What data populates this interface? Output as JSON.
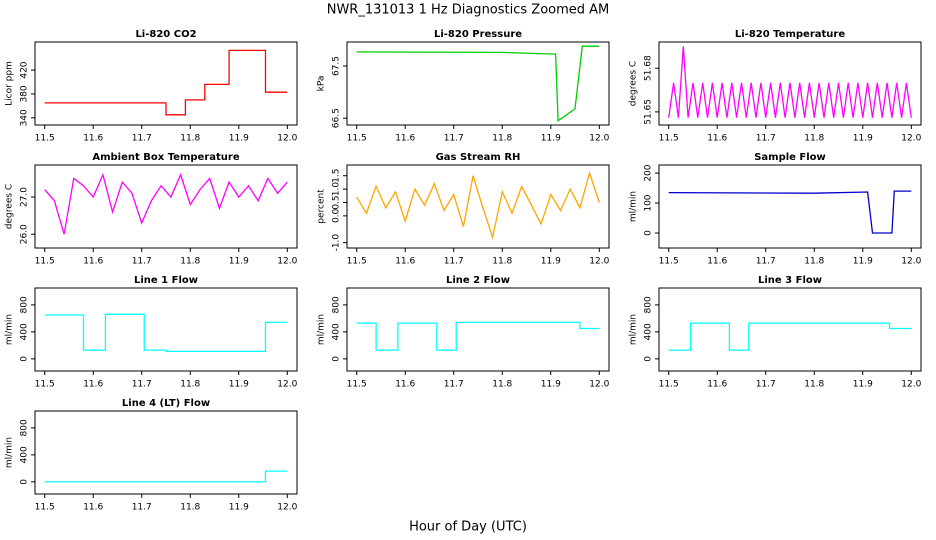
{
  "title": "NWR_131013  1 Hz Diagnostics Zoomed AM",
  "x_label": "Hour of Day (UTC)",
  "chart_data": [
    {
      "type": "line",
      "title": "Li-820 CO2",
      "ylabel": "Licor ppm",
      "color": "#ff0000",
      "x": [
        11.5,
        11.75,
        11.75,
        11.79,
        11.79,
        11.83,
        11.83,
        11.88,
        11.88,
        11.955,
        11.955,
        11.96,
        11.96,
        12.0
      ],
      "values": [
        365,
        365,
        345,
        345,
        370,
        370,
        396,
        396,
        453,
        453,
        383,
        383,
        383,
        383
      ],
      "xlim": [
        11.48,
        12.02
      ],
      "ylim": [
        328,
        467
      ],
      "xticks": [
        11.5,
        11.6,
        11.7,
        11.8,
        11.9,
        {
          "value": 12,
          "label": "12.0"
        }
      ],
      "yticks": [
        340,
        380,
        420
      ]
    },
    {
      "type": "line",
      "title": "Li-820 Pressure",
      "ylabel": "kPa",
      "color": "#00cc00",
      "x": [
        11.5,
        11.8,
        11.9,
        11.91,
        11.915,
        11.95,
        11.965,
        12.0
      ],
      "values": [
        67.77,
        67.76,
        67.73,
        67.73,
        66.45,
        66.68,
        67.88,
        67.88
      ],
      "xlim": [
        11.48,
        12.02
      ],
      "ylim": [
        66.37,
        67.96
      ],
      "xticks": [
        11.5,
        11.6,
        11.7,
        11.8,
        11.9,
        {
          "value": 12,
          "label": "12.0"
        }
      ],
      "yticks": [
        66.5,
        67.5
      ]
    },
    {
      "type": "line",
      "title": "Li-820 Temperature",
      "ylabel": "degrees C",
      "color": "#ff00ff",
      "x": [
        11.5,
        11.51,
        11.52,
        11.53,
        11.54,
        11.55,
        11.56,
        11.57,
        11.58,
        11.59,
        11.6,
        11.61,
        11.62,
        11.63,
        11.64,
        11.65,
        11.66,
        11.67,
        11.68,
        11.69,
        11.7,
        11.71,
        11.72,
        11.73,
        11.74,
        11.75,
        11.76,
        11.77,
        11.78,
        11.79,
        11.8,
        11.81,
        11.82,
        11.83,
        11.84,
        11.85,
        11.86,
        11.87,
        11.88,
        11.89,
        11.9,
        11.91,
        11.92,
        11.93,
        11.94,
        11.95,
        11.96,
        11.97,
        11.98,
        11.99,
        12.0
      ],
      "values": [
        51.646,
        51.67,
        51.646,
        51.695,
        51.646,
        51.67,
        51.646,
        51.67,
        51.646,
        51.67,
        51.646,
        51.67,
        51.646,
        51.67,
        51.646,
        51.67,
        51.646,
        51.67,
        51.646,
        51.67,
        51.646,
        51.67,
        51.646,
        51.67,
        51.646,
        51.67,
        51.646,
        51.67,
        51.646,
        51.67,
        51.646,
        51.67,
        51.646,
        51.67,
        51.646,
        51.67,
        51.646,
        51.67,
        51.646,
        51.67,
        51.646,
        51.67,
        51.646,
        51.67,
        51.646,
        51.67,
        51.646,
        51.67,
        51.646,
        51.67,
        51.646
      ],
      "xlim": [
        11.48,
        12.02
      ],
      "ylim": [
        51.641,
        51.698
      ],
      "xticks": [
        11.5,
        11.6,
        11.7,
        11.8,
        11.9,
        {
          "value": 12,
          "label": "12.0"
        }
      ],
      "yticks": [
        51.65,
        51.68
      ]
    },
    {
      "type": "line",
      "title": "Ambient Box Temperature",
      "ylabel": "degrees C",
      "color": "#ff00ff",
      "x": [
        11.5,
        11.52,
        11.54,
        11.56,
        11.58,
        11.6,
        11.62,
        11.64,
        11.66,
        11.68,
        11.7,
        11.72,
        11.74,
        11.76,
        11.78,
        11.8,
        11.82,
        11.84,
        11.86,
        11.88,
        11.9,
        11.92,
        11.94,
        11.96,
        11.98,
        12.0
      ],
      "values": [
        27.2,
        26.9,
        26.0,
        27.5,
        27.3,
        27.0,
        27.6,
        26.6,
        27.4,
        27.1,
        26.3,
        26.9,
        27.3,
        27.0,
        27.6,
        26.8,
        27.2,
        27.5,
        26.7,
        27.4,
        27.0,
        27.3,
        26.9,
        27.5,
        27.1,
        27.4
      ],
      "xlim": [
        11.48,
        12.02
      ],
      "ylim": [
        25.63,
        27.86
      ],
      "xticks": [
        11.5,
        11.6,
        11.7,
        11.8,
        11.9,
        {
          "value": 12,
          "label": "12.0"
        }
      ],
      "yticks": [
        {
          "value": 26,
          "label": "26.0"
        },
        {
          "value": 27,
          "label": "27.0"
        }
      ]
    },
    {
      "type": "line",
      "title": "Gas Stream RH",
      "ylabel": "percent",
      "color": "#ffa500",
      "x": [
        11.5,
        11.52,
        11.54,
        11.56,
        11.58,
        11.6,
        11.62,
        11.64,
        11.66,
        11.68,
        11.7,
        11.72,
        11.74,
        11.76,
        11.78,
        11.8,
        11.82,
        11.84,
        11.86,
        11.88,
        11.9,
        11.92,
        11.94,
        11.96,
        11.98,
        12.0
      ],
      "values": [
        0.7,
        0.1,
        1.1,
        0.3,
        0.9,
        -0.2,
        1.0,
        0.4,
        1.2,
        0.2,
        0.8,
        -0.4,
        1.5,
        0.3,
        -0.8,
        0.9,
        0.1,
        1.1,
        0.4,
        -0.3,
        0.8,
        0.2,
        1.0,
        0.3,
        1.6,
        0.5
      ],
      "xlim": [
        11.48,
        12.02
      ],
      "ylim": [
        -1.2,
        1.9
      ],
      "xticks": [
        11.5,
        11.6,
        11.7,
        11.8,
        11.9,
        {
          "value": 12,
          "label": "12.0"
        }
      ],
      "yticks": [
        {
          "value": -1,
          "label": "-1.0"
        },
        {
          "value": 0,
          "label": "0.0"
        },
        0.5,
        {
          "value": 1,
          "label": "1.0"
        },
        1.5
      ]
    },
    {
      "type": "line",
      "title": "Sample Flow",
      "ylabel": "ml/min",
      "color": "#0000cc",
      "x": [
        11.5,
        11.8,
        11.91,
        11.92,
        11.96,
        11.965,
        12.0
      ],
      "values": [
        135,
        133,
        137,
        0,
        0,
        140,
        140
      ],
      "xlim": [
        11.48,
        12.02
      ],
      "ylim": [
        -50,
        227
      ],
      "xticks": [
        11.5,
        11.6,
        11.7,
        11.8,
        11.9,
        {
          "value": 12,
          "label": "12.0"
        }
      ],
      "yticks": [
        0,
        100,
        200
      ]
    },
    {
      "type": "line",
      "title": "Line 1 Flow",
      "ylabel": "ml/min",
      "color": "#00ffff",
      "x": [
        11.5,
        11.58,
        11.58,
        11.625,
        11.625,
        11.705,
        11.705,
        11.75,
        11.75,
        11.955,
        11.955,
        12.0
      ],
      "values": [
        650,
        650,
        130,
        130,
        660,
        660,
        130,
        130,
        110,
        110,
        540,
        540
      ],
      "xlim": [
        11.48,
        12.02
      ],
      "ylim": [
        -180,
        1050
      ],
      "xticks": [
        11.5,
        11.6,
        11.7,
        11.8,
        11.9,
        {
          "value": 12,
          "label": "12.0"
        }
      ],
      "yticks": [
        0,
        400,
        800
      ]
    },
    {
      "type": "line",
      "title": "Line 2 Flow",
      "ylabel": "ml/min",
      "color": "#00ffff",
      "x": [
        11.5,
        11.54,
        11.54,
        11.585,
        11.585,
        11.665,
        11.665,
        11.705,
        11.705,
        11.96,
        11.96,
        12.0
      ],
      "values": [
        530,
        530,
        130,
        130,
        530,
        530,
        130,
        130,
        540,
        540,
        450,
        450
      ],
      "xlim": [
        11.48,
        12.02
      ],
      "ylim": [
        -180,
        1050
      ],
      "xticks": [
        11.5,
        11.6,
        11.7,
        11.8,
        11.9,
        {
          "value": 12,
          "label": "12.0"
        }
      ],
      "yticks": [
        0,
        400,
        800
      ]
    },
    {
      "type": "line",
      "title": "Line 3 Flow",
      "ylabel": "ml/min",
      "color": "#00ffff",
      "x": [
        11.5,
        11.545,
        11.545,
        11.625,
        11.625,
        11.665,
        11.665,
        11.955,
        11.955,
        12.0
      ],
      "values": [
        130,
        130,
        530,
        530,
        130,
        130,
        530,
        530,
        450,
        450
      ],
      "xlim": [
        11.48,
        12.02
      ],
      "ylim": [
        -180,
        1050
      ],
      "xticks": [
        11.5,
        11.6,
        11.7,
        11.8,
        11.9,
        {
          "value": 12,
          "label": "12.0"
        }
      ],
      "yticks": [
        0,
        400,
        800
      ]
    },
    {
      "type": "line",
      "title": "Line 4 (LT) Flow",
      "ylabel": "ml/min",
      "color": "#00ffff",
      "x": [
        11.5,
        11.955,
        11.955,
        12.0
      ],
      "values": [
        0,
        0,
        160,
        160
      ],
      "xlim": [
        11.48,
        12.02
      ],
      "ylim": [
        -180,
        1050
      ],
      "xticks": [
        11.5,
        11.6,
        11.7,
        11.8,
        11.9,
        {
          "value": 12,
          "label": "12.0"
        }
      ],
      "yticks": [
        0,
        400,
        800
      ]
    }
  ]
}
